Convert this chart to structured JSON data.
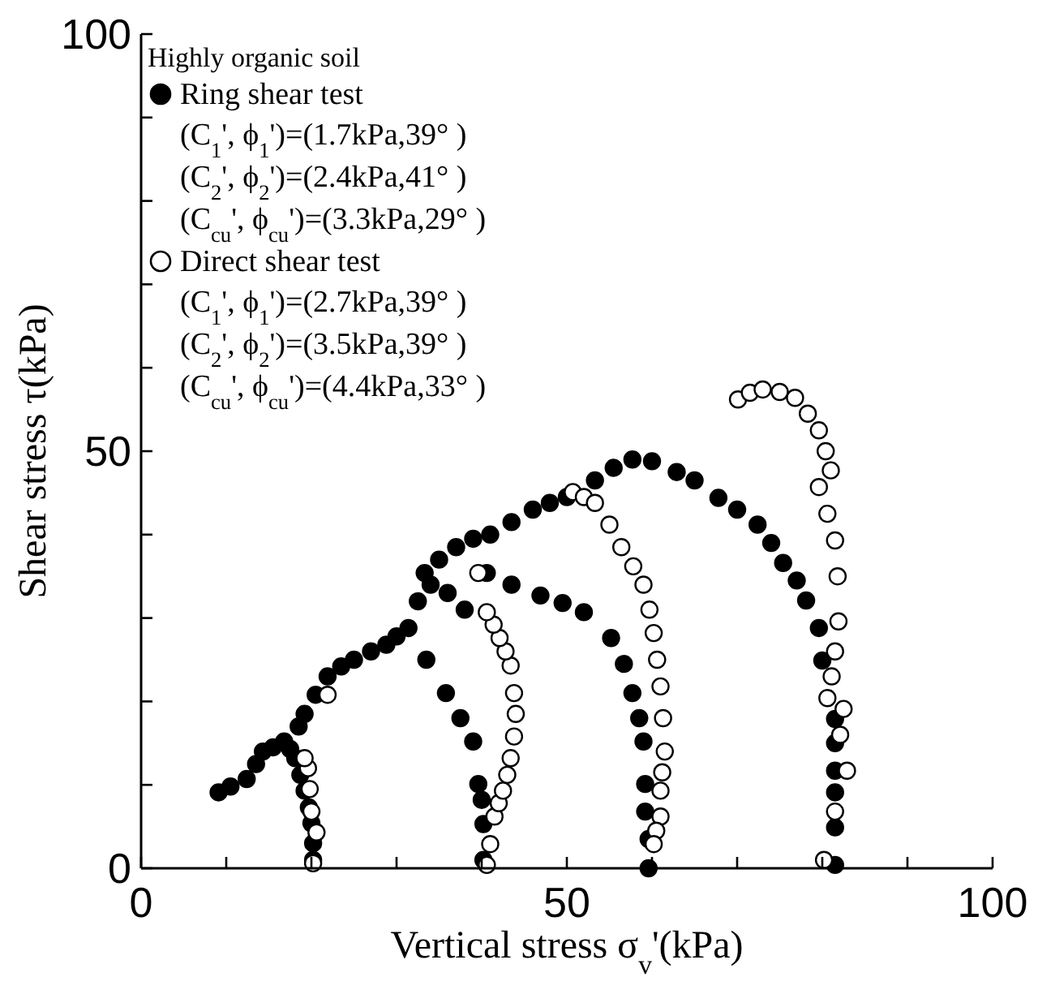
{
  "chart_data": {
    "type": "scatter",
    "xlabel": "Vertical stress σ$_{v}$'(kPa)",
    "ylabel": "Shear stress τ(kPa)",
    "legend_title": "Highly organic soil",
    "legend": "top left",
    "marker": "circle",
    "xlim": [
      0,
      100
    ],
    "ylim": [
      0,
      100
    ],
    "xticks": [
      0,
      {
        "value": 10,
        "label": null
      },
      {
        "value": 20,
        "label": null
      },
      {
        "value": 30,
        "label": null
      },
      {
        "value": 40,
        "label": null
      },
      50,
      {
        "value": 60,
        "label": null
      },
      {
        "value": 70,
        "label": null
      },
      {
        "value": 80,
        "label": null
      },
      {
        "value": 90,
        "label": null
      },
      100
    ],
    "yticks": [
      0,
      {
        "value": 10,
        "label": null
      },
      {
        "value": 20,
        "label": null
      },
      {
        "value": 30,
        "label": null
      },
      {
        "value": 40,
        "label": null
      },
      50,
      {
        "value": 60,
        "label": null
      },
      {
        "value": 70,
        "label": null
      },
      {
        "value": 80,
        "label": null
      },
      {
        "value": 90,
        "label": null
      },
      100
    ],
    "annotations": [
      "(C$_{1}$', ϕ$_{1}$')=(1.7kPa,39°  )",
      "(C$_{2}$', ϕ$_{2}$')=(2.4kPa,41°  )",
      "(C$_{cu}$', ϕ$_{cu}$')=(3.3kPa,29°  )",
      "(C$_{1}$', ϕ$_{1}$')=(2.7kPa,39°  )",
      "(C$_{2}$', ϕ$_{2}$')=(3.5kPa,39°  )",
      "(C$_{cu}$', ϕ$_{cu}$')=(4.4kPa,33°  )"
    ],
    "series": [
      {
        "name": "Ring shear test",
        "color": "#000000",
        "x": [
          9.1,
          10.5,
          12.4,
          13.5,
          14.3,
          15.5,
          16.8,
          17.5,
          18.1,
          18.7,
          19.2,
          19.7,
          20,
          20.2,
          20.2,
          18.5,
          19.2,
          20.5,
          21.9,
          23.5,
          25,
          27,
          28.8,
          30,
          31.4,
          32.5,
          33.3,
          35,
          37,
          39,
          41,
          43.5,
          46,
          48,
          50,
          53.3,
          55.5,
          57.7,
          60,
          62.9,
          65,
          67.8,
          70,
          72.4,
          74,
          75.4,
          77,
          78.1,
          79.6,
          80,
          81.5,
          81.5,
          81.5,
          81.5,
          81.5,
          81.5,
          33.5,
          35.8,
          37.5,
          39,
          39.6,
          40,
          40.2,
          40.2,
          40.6,
          43.5,
          46.9,
          49.5,
          52,
          55.2,
          56.7,
          57.7,
          58.5,
          59,
          59.2,
          59.2,
          59.6,
          59.6,
          34,
          36,
          38
        ],
        "values": [
          9.1,
          9.8,
          10.7,
          12.5,
          14,
          14.5,
          15.2,
          14.3,
          13.2,
          11.2,
          9.3,
          7.3,
          5.4,
          3,
          1,
          17,
          18.5,
          20.8,
          23,
          24.2,
          25,
          26,
          26.8,
          27.8,
          28.8,
          32,
          35.4,
          37,
          38.5,
          39.5,
          40,
          41.5,
          43,
          43.8,
          44.5,
          46.5,
          48,
          49,
          48.8,
          47.5,
          46.5,
          44.4,
          43,
          41.2,
          39,
          36.6,
          34.5,
          32.1,
          28.8,
          24.9,
          17.9,
          15,
          11.7,
          9.1,
          4.9,
          0.4,
          25,
          21,
          18,
          15.2,
          10.1,
          8.2,
          5.3,
          1,
          35.4,
          34,
          32.7,
          31.8,
          30.7,
          27.6,
          24.5,
          21,
          18,
          15.2,
          10.1,
          6.8,
          3.5,
          0,
          34,
          33,
          31
        ]
      },
      {
        "name": "Direct shear test",
        "color": "#ffffff",
        "x": [
          20.2,
          20.6,
          20,
          19.8,
          19.6,
          19.2,
          21.9,
          40.6,
          41,
          41.5,
          42,
          42.5,
          43,
          43.4,
          43.8,
          44,
          43.8,
          43.4,
          42.8,
          42.1,
          41.4,
          40.6,
          39.6,
          50.7,
          52,
          53.3,
          55,
          56.4,
          57.8,
          59,
          59.7,
          60.2,
          60.6,
          61,
          61.3,
          61.5,
          61.2,
          61,
          61,
          60.5,
          60.2,
          70.1,
          71.5,
          73,
          75,
          76.8,
          78.3,
          79.6,
          80.4,
          81,
          79.6,
          80.6,
          81.5,
          81.8,
          81.9,
          81.5,
          81.1,
          80.6,
          82.5,
          82.1,
          82.9,
          81.5,
          80.2
        ],
        "values": [
          0.6,
          4.3,
          6.8,
          9.5,
          12,
          13.2,
          20.8,
          0.4,
          2.9,
          6.2,
          7.8,
          9.3,
          11.2,
          13.2,
          15.8,
          18.5,
          21,
          24.3,
          26,
          27.6,
          29.2,
          30.7,
          35.4,
          45.1,
          44.5,
          43.8,
          41.2,
          38.5,
          36.2,
          34,
          31,
          28.2,
          25,
          21.8,
          18,
          14,
          11.5,
          9.3,
          6.2,
          4.5,
          2.9,
          56.2,
          57,
          57.4,
          57.1,
          56.4,
          54.5,
          52.5,
          50,
          47.7,
          45.7,
          42.5,
          39.3,
          35,
          29.6,
          26,
          23,
          20.4,
          19.1,
          16,
          11.7,
          6.8,
          1
        ]
      }
    ]
  }
}
